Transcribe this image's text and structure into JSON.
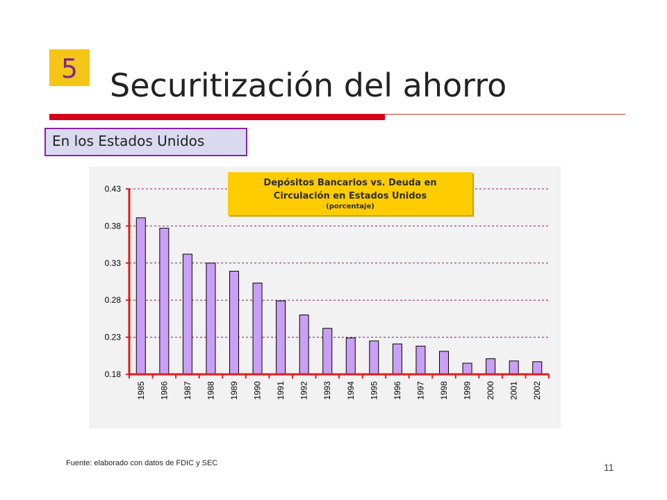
{
  "slide": {
    "number": "5",
    "title": "Securitización del ahorro",
    "subtitle": "En los Estados Unidos",
    "source": "Fuente: elaborado con datos de FDIC y SEC",
    "page": "11"
  },
  "colors": {
    "accent_yellow": "#f5c518",
    "number_purple": "#7b2a8c",
    "rule_red": "#d6001c",
    "bar_fill": "#c9a0f5",
    "axis_red": "#e31a1c",
    "grid_dashed": "#8a1c6c"
  },
  "chart_data": {
    "type": "bar",
    "title_lines": [
      "Depósitos Bancarios vs. Deuda en",
      "Circulación en Estados Unidos"
    ],
    "title_sub": "(porcentaje)",
    "categories": [
      "1985",
      "1986",
      "1987",
      "1988",
      "1989",
      "1990",
      "1991",
      "1992",
      "1993",
      "1994",
      "1995",
      "1996",
      "1997",
      "1998",
      "1999",
      "2000",
      "2001",
      "2002"
    ],
    "values": [
      0.391,
      0.377,
      0.342,
      0.33,
      0.319,
      0.303,
      0.279,
      0.26,
      0.242,
      0.229,
      0.225,
      0.221,
      0.218,
      0.211,
      0.195,
      0.201,
      0.198,
      0.197
    ],
    "yticks": [
      0.43,
      0.38,
      0.33,
      0.28,
      0.23,
      0.18
    ],
    "ytick_labels": [
      "0.43",
      "0.38",
      "0.33",
      "0.28",
      "0.23",
      "0.18"
    ],
    "ylim": [
      0.18,
      0.43
    ],
    "grid": true
  }
}
